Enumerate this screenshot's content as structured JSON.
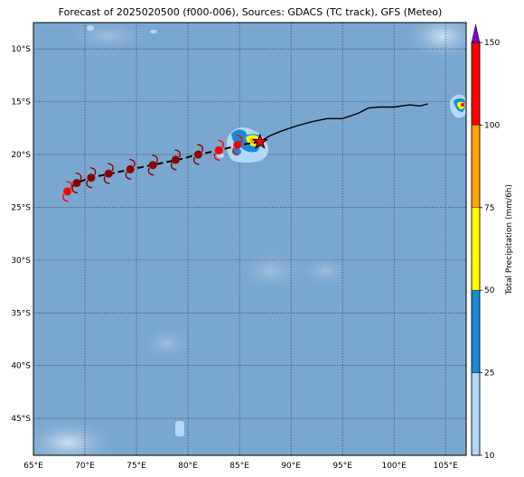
{
  "title": "Forecast of 2025020500 (f000-006), Sources: GDACS (TC track), GFS (Meteo)",
  "map": {
    "lon_range": [
      65,
      107
    ],
    "lat_range": [
      -48.5,
      -7.5
    ],
    "lon_ticks": [
      65,
      70,
      75,
      80,
      85,
      90,
      95,
      100,
      105
    ],
    "lon_tick_labels": [
      "65°E",
      "70°E",
      "75°E",
      "80°E",
      "85°E",
      "90°E",
      "95°E",
      "100°E",
      "105°E"
    ],
    "lat_ticks": [
      -10,
      -15,
      -20,
      -25,
      -30,
      -35,
      -40,
      -45
    ],
    "lat_tick_labels": [
      "10°S",
      "15°S",
      "20°S",
      "25°S",
      "30°S",
      "35°S",
      "40°S",
      "45°S"
    ],
    "gridlines": true,
    "ocean_color": "#7aa7cf"
  },
  "observed_track": [
    [
      103.3,
      -15.2
    ],
    [
      102.5,
      -15.4
    ],
    [
      101.5,
      -15.3
    ],
    [
      100.0,
      -15.5
    ],
    [
      98.5,
      -15.5
    ],
    [
      97.5,
      -15.6
    ],
    [
      96.5,
      -16.1
    ],
    [
      95.0,
      -16.6
    ],
    [
      93.5,
      -16.6
    ],
    [
      92.0,
      -16.9
    ],
    [
      90.5,
      -17.3
    ],
    [
      89.0,
      -17.8
    ],
    [
      88.0,
      -18.2
    ],
    [
      87.3,
      -18.6
    ]
  ],
  "current_position": [
    87.0,
    -18.8
  ],
  "forecast_track": [
    [
      87.0,
      -18.8
    ],
    [
      85.0,
      -19.1
    ],
    [
      83.0,
      -19.6
    ],
    [
      81.0,
      -20.0
    ],
    [
      79.0,
      -20.5
    ],
    [
      76.5,
      -21.0
    ],
    [
      74.5,
      -21.4
    ],
    [
      72.5,
      -21.8
    ],
    [
      70.5,
      -22.2
    ],
    [
      69.2,
      -22.7
    ],
    [
      68.3,
      -23.4
    ]
  ],
  "storm_symbols": [
    {
      "lon": 84.8,
      "lat": -19.1,
      "color": "#ff0000"
    },
    {
      "lon": 83.0,
      "lat": -19.6,
      "color": "#ff0000"
    },
    {
      "lon": 81.0,
      "lat": -20.0,
      "color": "#8b0000"
    },
    {
      "lon": 78.8,
      "lat": -20.5,
      "color": "#8b0000"
    },
    {
      "lon": 76.6,
      "lat": -21.0,
      "color": "#8b0000"
    },
    {
      "lon": 74.4,
      "lat": -21.4,
      "color": "#8b0000"
    },
    {
      "lon": 72.3,
      "lat": -21.8,
      "color": "#8b0000"
    },
    {
      "lon": 70.6,
      "lat": -22.2,
      "color": "#8b0000"
    },
    {
      "lon": 69.2,
      "lat": -22.7,
      "color": "#8b0000"
    },
    {
      "lon": 68.3,
      "lat": -23.5,
      "color": "#ff0000"
    }
  ],
  "colorbar": {
    "label": "Total Precipitation (mm/6h)",
    "ticks": [
      10,
      25,
      50,
      75,
      100,
      150
    ],
    "tick_labels": [
      "10",
      "25",
      "50",
      "75",
      "100",
      "150"
    ],
    "segments": [
      {
        "from": 10,
        "to": 25,
        "color": "#b3d7f7"
      },
      {
        "from": 25,
        "to": 50,
        "color": "#1a8ad4"
      },
      {
        "from": 50,
        "to": 75,
        "color": "#ffff00"
      },
      {
        "from": 75,
        "to": 100,
        "color": "#ffa500"
      },
      {
        "from": 100,
        "to": 150,
        "color": "#ff0000"
      }
    ],
    "extend_color": "#8000c8"
  }
}
